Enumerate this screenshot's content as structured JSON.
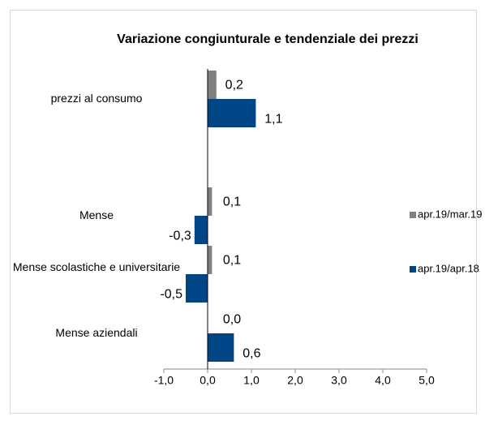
{
  "chart_data": {
    "type": "bar",
    "orientation": "horizontal",
    "title": "Variazione congiunturale e tendenziale dei prezzi",
    "categories": [
      "prezzi al consumo",
      "Mense",
      "Mense scolastiche e universitarie",
      "Mense aziendali"
    ],
    "series": [
      {
        "name": "apr.19/mar.19",
        "color": "#808080",
        "values": [
          0.2,
          0.1,
          0.1,
          0.0
        ],
        "value_labels": [
          "0,2",
          "0,1",
          "0,1",
          "0,0"
        ]
      },
      {
        "name": "apr.19/apr.18",
        "color": "#004586",
        "values": [
          1.1,
          -0.3,
          -0.5,
          0.6
        ],
        "value_labels": [
          "1,1",
          "-0,3",
          "-0,5",
          "0,6"
        ]
      }
    ],
    "xlim": [
      -1,
      5
    ],
    "xticks": [
      {
        "value": -1,
        "label": "-1,0"
      },
      {
        "value": 0,
        "label": "0,0"
      },
      {
        "value": 1,
        "label": "1,0"
      },
      {
        "value": 2,
        "label": "2,0"
      },
      {
        "value": 3,
        "label": "3,0"
      },
      {
        "value": 4,
        "label": "4,0"
      },
      {
        "value": 5,
        "label": "5,0"
      }
    ],
    "legend": "right"
  }
}
